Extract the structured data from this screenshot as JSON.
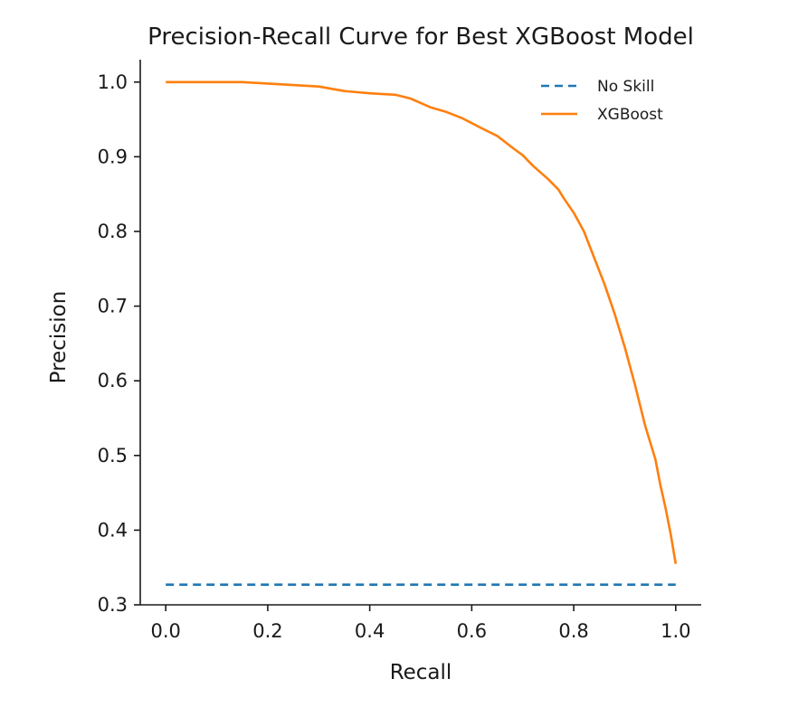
{
  "chart_data": {
    "type": "line",
    "title": "Precision-Recall Curve for Best XGBoost Model",
    "xlabel": "Recall",
    "ylabel": "Precision",
    "xlim": [
      -0.05,
      1.05
    ],
    "ylim": [
      0.3,
      1.03
    ],
    "xticks": [
      "0.0",
      "0.2",
      "0.4",
      "0.6",
      "0.8",
      "1.0"
    ],
    "yticks": [
      "0.3",
      "0.4",
      "0.5",
      "0.6",
      "0.7",
      "0.8",
      "0.9",
      "1.0"
    ],
    "grid": false,
    "legend_position": "top-right",
    "series": [
      {
        "name": "No Skill",
        "style": "dashed",
        "color": "#1f77b4",
        "x": [
          0.0,
          1.0
        ],
        "y": [
          0.327,
          0.327
        ]
      },
      {
        "name": "XGBoost",
        "style": "solid",
        "color": "#ff7f0e",
        "x": [
          0.0,
          0.05,
          0.1,
          0.15,
          0.2,
          0.25,
          0.3,
          0.35,
          0.4,
          0.45,
          0.48,
          0.5,
          0.52,
          0.55,
          0.58,
          0.6,
          0.62,
          0.65,
          0.68,
          0.7,
          0.72,
          0.75,
          0.77,
          0.78,
          0.8,
          0.82,
          0.84,
          0.86,
          0.88,
          0.9,
          0.92,
          0.94,
          0.96,
          0.97,
          0.98,
          0.99,
          1.0
        ],
        "y": [
          1.0,
          1.0,
          1.0,
          1.0,
          0.998,
          0.996,
          0.994,
          0.988,
          0.985,
          0.983,
          0.978,
          0.972,
          0.966,
          0.96,
          0.952,
          0.945,
          0.938,
          0.928,
          0.912,
          0.902,
          0.888,
          0.87,
          0.856,
          0.845,
          0.825,
          0.8,
          0.765,
          0.73,
          0.69,
          0.645,
          0.595,
          0.54,
          0.495,
          0.46,
          0.43,
          0.395,
          0.355
        ]
      }
    ]
  }
}
